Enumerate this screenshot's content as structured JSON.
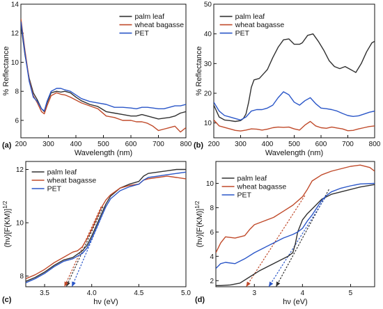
{
  "chart_data": [
    {
      "type": "line",
      "panel_label": "(a)",
      "xlabel": "Wavelength (nm)",
      "ylabel": "% Reflectance",
      "xlim": [
        200,
        800
      ],
      "ylim": [
        4.8,
        14
      ],
      "xticks": [
        200,
        300,
        400,
        500,
        600,
        700,
        800
      ],
      "yticks": [
        6,
        8,
        10,
        12,
        14
      ],
      "legend_position": "top-right",
      "series": [
        {
          "name": "palm leaf",
          "color": "#303030",
          "x": [
            200,
            215,
            230,
            245,
            260,
            275,
            285,
            295,
            310,
            330,
            345,
            360,
            380,
            400,
            420,
            450,
            480,
            510,
            540,
            570,
            600,
            620,
            640,
            660,
            680,
            700,
            720,
            740,
            760,
            780,
            800
          ],
          "y": [
            12.6,
            10.5,
            8.9,
            7.9,
            7.4,
            6.8,
            6.6,
            7.2,
            7.9,
            8.0,
            7.95,
            8.0,
            7.9,
            7.6,
            7.35,
            7.1,
            6.95,
            6.6,
            6.5,
            6.4,
            6.3,
            6.3,
            6.4,
            6.3,
            6.2,
            6.1,
            6.15,
            6.2,
            6.3,
            6.5,
            6.6
          ]
        },
        {
          "name": "wheat bagasse",
          "color": "#c04a2a",
          "x": [
            200,
            215,
            230,
            245,
            260,
            275,
            285,
            295,
            310,
            330,
            345,
            360,
            380,
            400,
            420,
            450,
            480,
            510,
            540,
            570,
            600,
            620,
            640,
            660,
            680,
            700,
            720,
            740,
            760,
            780,
            800
          ],
          "y": [
            13.0,
            10.8,
            8.8,
            7.7,
            7.2,
            6.6,
            6.45,
            7.0,
            7.7,
            7.9,
            7.8,
            7.75,
            7.6,
            7.4,
            7.2,
            7.0,
            6.8,
            6.3,
            6.2,
            6.0,
            6.0,
            5.9,
            5.9,
            5.8,
            5.6,
            5.3,
            5.4,
            5.5,
            5.6,
            5.2,
            5.5
          ]
        },
        {
          "name": "PET",
          "color": "#2a56c8",
          "x": [
            200,
            215,
            230,
            245,
            260,
            275,
            285,
            295,
            310,
            330,
            345,
            360,
            380,
            400,
            420,
            450,
            480,
            510,
            540,
            570,
            600,
            620,
            640,
            660,
            680,
            700,
            720,
            740,
            760,
            780,
            800
          ],
          "y": [
            12.8,
            10.6,
            8.7,
            7.6,
            7.3,
            6.8,
            6.65,
            7.3,
            8.0,
            8.2,
            8.2,
            8.1,
            8.0,
            7.75,
            7.5,
            7.3,
            7.2,
            7.1,
            6.9,
            6.9,
            6.85,
            6.8,
            6.9,
            6.9,
            6.85,
            6.8,
            6.8,
            6.9,
            7.0,
            7.0,
            7.1
          ]
        }
      ]
    },
    {
      "type": "line",
      "panel_label": "(b)",
      "xlabel": "Wavelength (nm)",
      "ylabel": "% Reflectance",
      "xlim": [
        200,
        800
      ],
      "ylim": [
        5,
        50
      ],
      "xticks": [
        200,
        300,
        400,
        500,
        600,
        700,
        800
      ],
      "yticks": [
        10,
        20,
        30,
        40,
        50
      ],
      "legend_position": "top-left",
      "series": [
        {
          "name": "palm leaf",
          "color": "#303030",
          "x": [
            200,
            220,
            240,
            260,
            280,
            300,
            310,
            320,
            330,
            340,
            350,
            370,
            400,
            420,
            440,
            460,
            480,
            500,
            520,
            530,
            550,
            570,
            590,
            610,
            630,
            650,
            670,
            690,
            710,
            730,
            750,
            770,
            790,
            800
          ],
          "y": [
            16,
            12,
            11,
            10.8,
            10.5,
            10.8,
            11.5,
            13,
            17,
            22,
            24.5,
            25,
            28,
            32,
            35.5,
            38,
            38.3,
            36.5,
            36.5,
            37,
            39.5,
            40,
            37.5,
            34.5,
            31,
            29,
            28.3,
            29,
            28,
            27,
            30,
            34,
            37,
            37.5
          ]
        },
        {
          "name": "wheat bagasse",
          "color": "#c04a2a",
          "x": [
            200,
            220,
            240,
            260,
            280,
            300,
            320,
            340,
            360,
            380,
            400,
            420,
            440,
            460,
            480,
            500,
            520,
            540,
            560,
            580,
            600,
            620,
            640,
            660,
            680,
            700,
            720,
            740,
            760,
            780,
            800
          ],
          "y": [
            11,
            9,
            8.5,
            8,
            7.5,
            7.3,
            7.6,
            8,
            7.9,
            7.6,
            7.9,
            8.4,
            8.6,
            8.5,
            8.6,
            8,
            7.6,
            9.3,
            10.5,
            9,
            8.4,
            8.2,
            8.6,
            8.3,
            8,
            7.4,
            7.5,
            8,
            8.4,
            8.8,
            9
          ]
        },
        {
          "name": "PET",
          "color": "#2a56c8",
          "x": [
            200,
            220,
            240,
            260,
            280,
            300,
            320,
            340,
            360,
            380,
            400,
            420,
            440,
            460,
            480,
            500,
            520,
            540,
            560,
            580,
            600,
            620,
            640,
            660,
            680,
            700,
            720,
            740,
            760,
            780,
            800
          ],
          "y": [
            17,
            14,
            12.5,
            12,
            11.5,
            11,
            12,
            14,
            14.5,
            14.5,
            15,
            16,
            18.5,
            20.5,
            19.5,
            17,
            16,
            17.5,
            18.5,
            16.5,
            15,
            14.8,
            14.5,
            14,
            13.2,
            12.5,
            12.2,
            12.4,
            13,
            13.6,
            14
          ]
        }
      ]
    },
    {
      "type": "line",
      "panel_label": "(c)",
      "xlabel": "hν (eV)",
      "ylabel": "(hν)[F(KM)]",
      "ylabel_superscript": "1/2",
      "xlim": [
        3.3,
        5.0
      ],
      "ylim": [
        7.6,
        12.3
      ],
      "xticks": [
        3.5,
        4.0,
        4.5,
        5.0
      ],
      "xticklabels": [
        "3.5",
        "4.0",
        "4.5",
        "5.0"
      ],
      "yticks": [
        8,
        10,
        12
      ],
      "legend_position": "top-left",
      "series": [
        {
          "name": "palm leaf",
          "color": "#303030",
          "x": [
            3.3,
            3.4,
            3.5,
            3.6,
            3.7,
            3.8,
            3.9,
            3.95,
            4.0,
            4.05,
            4.1,
            4.15,
            4.2,
            4.3,
            4.4,
            4.5,
            4.55,
            4.6,
            4.7,
            4.8,
            4.9,
            5.0
          ],
          "y": [
            7.8,
            7.95,
            8.15,
            8.4,
            8.6,
            8.7,
            8.95,
            9.15,
            9.5,
            9.9,
            10.3,
            10.7,
            11.0,
            11.3,
            11.45,
            11.55,
            11.75,
            11.85,
            11.9,
            11.95,
            12.0,
            12.0
          ]
        },
        {
          "name": "wheat bagasse",
          "color": "#c04a2a",
          "x": [
            3.3,
            3.4,
            3.5,
            3.6,
            3.7,
            3.8,
            3.85,
            3.9,
            3.95,
            4.0,
            4.05,
            4.1,
            4.15,
            4.2,
            4.3,
            4.4,
            4.5,
            4.55,
            4.6,
            4.7,
            4.8,
            4.9,
            5.0
          ],
          "y": [
            7.9,
            8.05,
            8.25,
            8.5,
            8.7,
            8.9,
            8.95,
            9.1,
            9.4,
            9.75,
            10.15,
            10.55,
            10.85,
            11.05,
            11.3,
            11.4,
            11.45,
            11.6,
            11.65,
            11.7,
            11.75,
            11.7,
            11.65
          ]
        },
        {
          "name": "PET",
          "color": "#2a56c8",
          "x": [
            3.3,
            3.4,
            3.5,
            3.6,
            3.7,
            3.8,
            3.9,
            3.95,
            4.0,
            4.05,
            4.1,
            4.15,
            4.2,
            4.3,
            4.4,
            4.5,
            4.55,
            4.6,
            4.7,
            4.8,
            4.9,
            5.0
          ],
          "y": [
            7.75,
            7.9,
            8.1,
            8.35,
            8.55,
            8.65,
            8.85,
            9.05,
            9.4,
            9.8,
            10.2,
            10.6,
            10.9,
            11.2,
            11.35,
            11.45,
            11.6,
            11.7,
            11.75,
            11.8,
            11.85,
            11.9
          ]
        }
      ],
      "tangents": [
        {
          "color": "#303030",
          "x": [
            3.73,
            4.12
          ],
          "y": [
            7.6,
            10.6
          ]
        },
        {
          "color": "#c04a2a",
          "x": [
            3.71,
            4.1
          ],
          "y": [
            7.6,
            10.6
          ]
        },
        {
          "color": "#2a56c8",
          "x": [
            3.79,
            4.15
          ],
          "y": [
            7.6,
            10.6
          ]
        }
      ]
    },
    {
      "type": "line",
      "panel_label": "(d)",
      "xlabel": "hν (eV)",
      "ylabel": "(hν)[F(KM)]",
      "ylabel_superscript": "1/2",
      "xlim": [
        2.2,
        5.5
      ],
      "ylim": [
        1.5,
        11.8
      ],
      "xticks": [
        3,
        4,
        5
      ],
      "xticklabels": [
        "3",
        "4",
        "5"
      ],
      "yticks": [
        2,
        4,
        6,
        8,
        10
      ],
      "legend_position": "top-left",
      "series": [
        {
          "name": "palm leaf",
          "color": "#303030",
          "x": [
            2.2,
            2.3,
            2.5,
            2.7,
            2.9,
            3.1,
            3.3,
            3.5,
            3.6,
            3.7,
            3.8,
            3.85,
            3.9,
            4.0,
            4.1,
            4.2,
            4.3,
            4.4,
            4.5,
            4.6,
            4.8,
            5.0,
            5.2,
            5.5
          ],
          "y": [
            1.6,
            1.6,
            1.65,
            1.8,
            2.3,
            2.8,
            3.2,
            3.6,
            3.8,
            4.0,
            4.3,
            5.0,
            6.0,
            7.0,
            7.5,
            7.9,
            8.3,
            8.7,
            8.9,
            9.1,
            9.3,
            9.5,
            9.7,
            9.9
          ]
        },
        {
          "name": "wheat bagasse",
          "color": "#c04a2a",
          "x": [
            2.2,
            2.3,
            2.4,
            2.6,
            2.8,
            2.9,
            3.0,
            3.2,
            3.4,
            3.6,
            3.8,
            4.0,
            4.1,
            4.2,
            4.4,
            4.6,
            4.8,
            5.0,
            5.2,
            5.4,
            5.5
          ],
          "y": [
            4.3,
            5.1,
            5.6,
            5.5,
            5.7,
            6.2,
            6.6,
            6.9,
            7.2,
            7.7,
            8.2,
            8.9,
            9.5,
            10.2,
            10.7,
            11.0,
            11.2,
            11.4,
            11.5,
            11.3,
            11.0
          ]
        },
        {
          "name": "PET",
          "color": "#2a56c8",
          "x": [
            2.2,
            2.3,
            2.4,
            2.6,
            2.8,
            3.0,
            3.2,
            3.4,
            3.6,
            3.8,
            3.9,
            4.0,
            4.1,
            4.2,
            4.3,
            4.4,
            4.5,
            4.6,
            4.8,
            5.0,
            5.2,
            5.5
          ],
          "y": [
            3.0,
            3.4,
            3.5,
            3.4,
            3.8,
            4.3,
            4.7,
            5.1,
            5.5,
            5.8,
            6.0,
            6.3,
            6.9,
            7.4,
            8.0,
            8.6,
            9.0,
            9.3,
            9.6,
            9.8,
            9.95,
            10.0
          ]
        }
      ],
      "tangents": [
        {
          "color": "#303030",
          "x": [
            3.45,
            4.55
          ],
          "y": [
            1.5,
            9.5
          ]
        },
        {
          "color": "#c04a2a",
          "x": [
            2.83,
            4.05
          ],
          "y": [
            1.5,
            9.0
          ]
        },
        {
          "color": "#2a56c8",
          "x": [
            3.3,
            4.5
          ],
          "y": [
            1.5,
            9.0
          ]
        }
      ]
    }
  ]
}
